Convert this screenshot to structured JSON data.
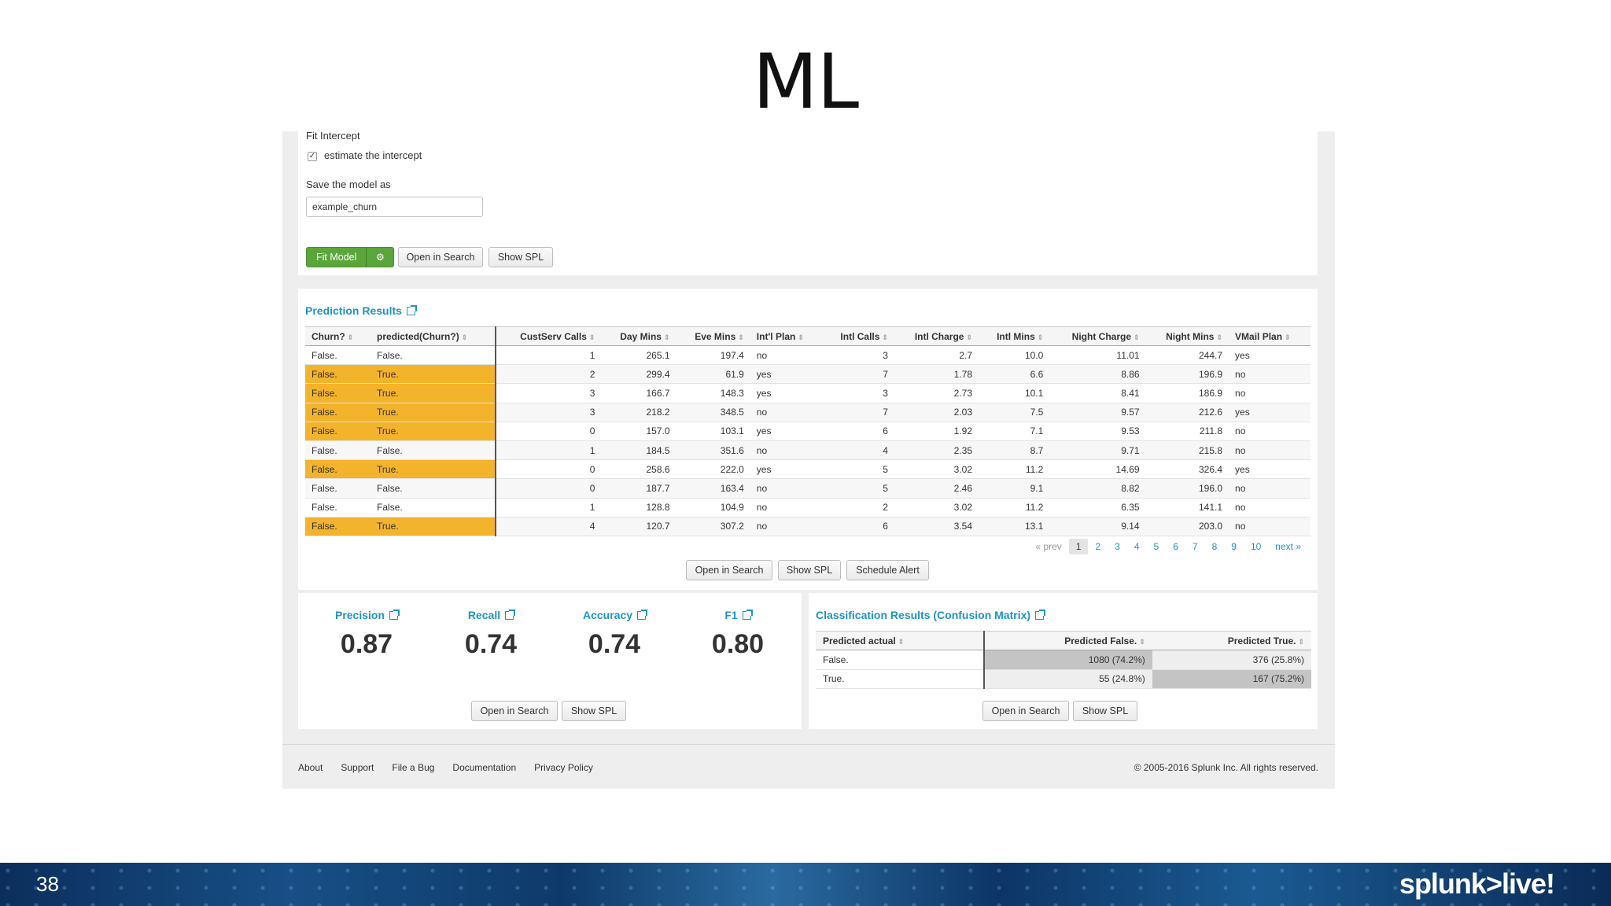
{
  "slide": {
    "title": "ML",
    "number": "38",
    "brand": "splunk>live!"
  },
  "form": {
    "fit_intercept_label": "Fit Intercept",
    "estimate_label": "estimate the intercept",
    "estimate_checked": "✓",
    "save_label": "Save the model as",
    "model_name": "example_churn",
    "fit_button": "Fit Model",
    "open_search": "Open in Search",
    "show_spl": "Show SPL"
  },
  "prediction": {
    "title": "Prediction Results",
    "columns": [
      "Churn?",
      "predicted(Churn?)",
      "CustServ Calls",
      "Day Mins",
      "Eve Mins",
      "Int'l Plan",
      "Intl Calls",
      "Intl Charge",
      "Intl Mins",
      "Night Charge",
      "Night Mins",
      "VMail Plan"
    ],
    "rows": [
      {
        "hl": false,
        "cells": [
          "False.",
          "False.",
          "1",
          "265.1",
          "197.4",
          "no",
          "3",
          "2.7",
          "10.0",
          "11.01",
          "244.7",
          "yes"
        ]
      },
      {
        "hl": true,
        "cells": [
          "False.",
          "True.",
          "2",
          "299.4",
          "61.9",
          "yes",
          "7",
          "1.78",
          "6.6",
          "8.86",
          "196.9",
          "no"
        ]
      },
      {
        "hl": true,
        "cells": [
          "False.",
          "True.",
          "3",
          "166.7",
          "148.3",
          "yes",
          "3",
          "2.73",
          "10.1",
          "8.41",
          "186.9",
          "no"
        ]
      },
      {
        "hl": true,
        "cells": [
          "False.",
          "True.",
          "3",
          "218.2",
          "348.5",
          "no",
          "7",
          "2.03",
          "7.5",
          "9.57",
          "212.6",
          "yes"
        ]
      },
      {
        "hl": true,
        "cells": [
          "False.",
          "True.",
          "0",
          "157.0",
          "103.1",
          "yes",
          "6",
          "1.92",
          "7.1",
          "9.53",
          "211.8",
          "no"
        ]
      },
      {
        "hl": false,
        "cells": [
          "False.",
          "False.",
          "1",
          "184.5",
          "351.6",
          "no",
          "4",
          "2.35",
          "8.7",
          "9.71",
          "215.8",
          "no"
        ]
      },
      {
        "hl": true,
        "cells": [
          "False.",
          "True.",
          "0",
          "258.6",
          "222.0",
          "yes",
          "5",
          "3.02",
          "11.2",
          "14.69",
          "326.4",
          "yes"
        ]
      },
      {
        "hl": false,
        "cells": [
          "False.",
          "False.",
          "0",
          "187.7",
          "163.4",
          "no",
          "5",
          "2.46",
          "9.1",
          "8.82",
          "196.0",
          "no"
        ]
      },
      {
        "hl": false,
        "cells": [
          "False.",
          "False.",
          "1",
          "128.8",
          "104.9",
          "no",
          "2",
          "3.02",
          "11.2",
          "6.35",
          "141.1",
          "no"
        ]
      },
      {
        "hl": true,
        "cells": [
          "False.",
          "True.",
          "4",
          "120.7",
          "307.2",
          "no",
          "6",
          "3.54",
          "13.1",
          "9.14",
          "203.0",
          "no"
        ]
      }
    ],
    "pager": {
      "prev": "« prev",
      "pages": [
        "1",
        "2",
        "3",
        "4",
        "5",
        "6",
        "7",
        "8",
        "9",
        "10"
      ],
      "current": "1",
      "next": "next »"
    },
    "open_search": "Open in Search",
    "show_spl": "Show SPL",
    "schedule_alert": "Schedule Alert",
    "highlight_color": "#f3b32a"
  },
  "metrics": {
    "items": [
      {
        "label": "Precision",
        "value": "0.87"
      },
      {
        "label": "Recall",
        "value": "0.74"
      },
      {
        "label": "Accuracy",
        "value": "0.74"
      },
      {
        "label": "F1",
        "value": "0.80"
      }
    ],
    "open_search": "Open in Search",
    "show_spl": "Show SPL"
  },
  "confusion": {
    "title": "Classification Results (Confusion Matrix)",
    "columns": [
      "Predicted actual",
      "Predicted False.",
      "Predicted True."
    ],
    "rows": [
      [
        "False.",
        "1080 (74.2%)",
        "376 (25.8%)"
      ],
      [
        "True.",
        "55 (24.8%)",
        "167 (75.2%)"
      ]
    ],
    "open_search": "Open in Search",
    "show_spl": "Show SPL"
  },
  "footer": {
    "links": [
      "About",
      "Support",
      "File a Bug",
      "Documentation",
      "Privacy Policy"
    ],
    "copyright": "© 2005-2016 Splunk Inc. All rights reserved."
  },
  "colors": {
    "accent": "#1e93c6",
    "fit_button": "#5aa63b"
  }
}
